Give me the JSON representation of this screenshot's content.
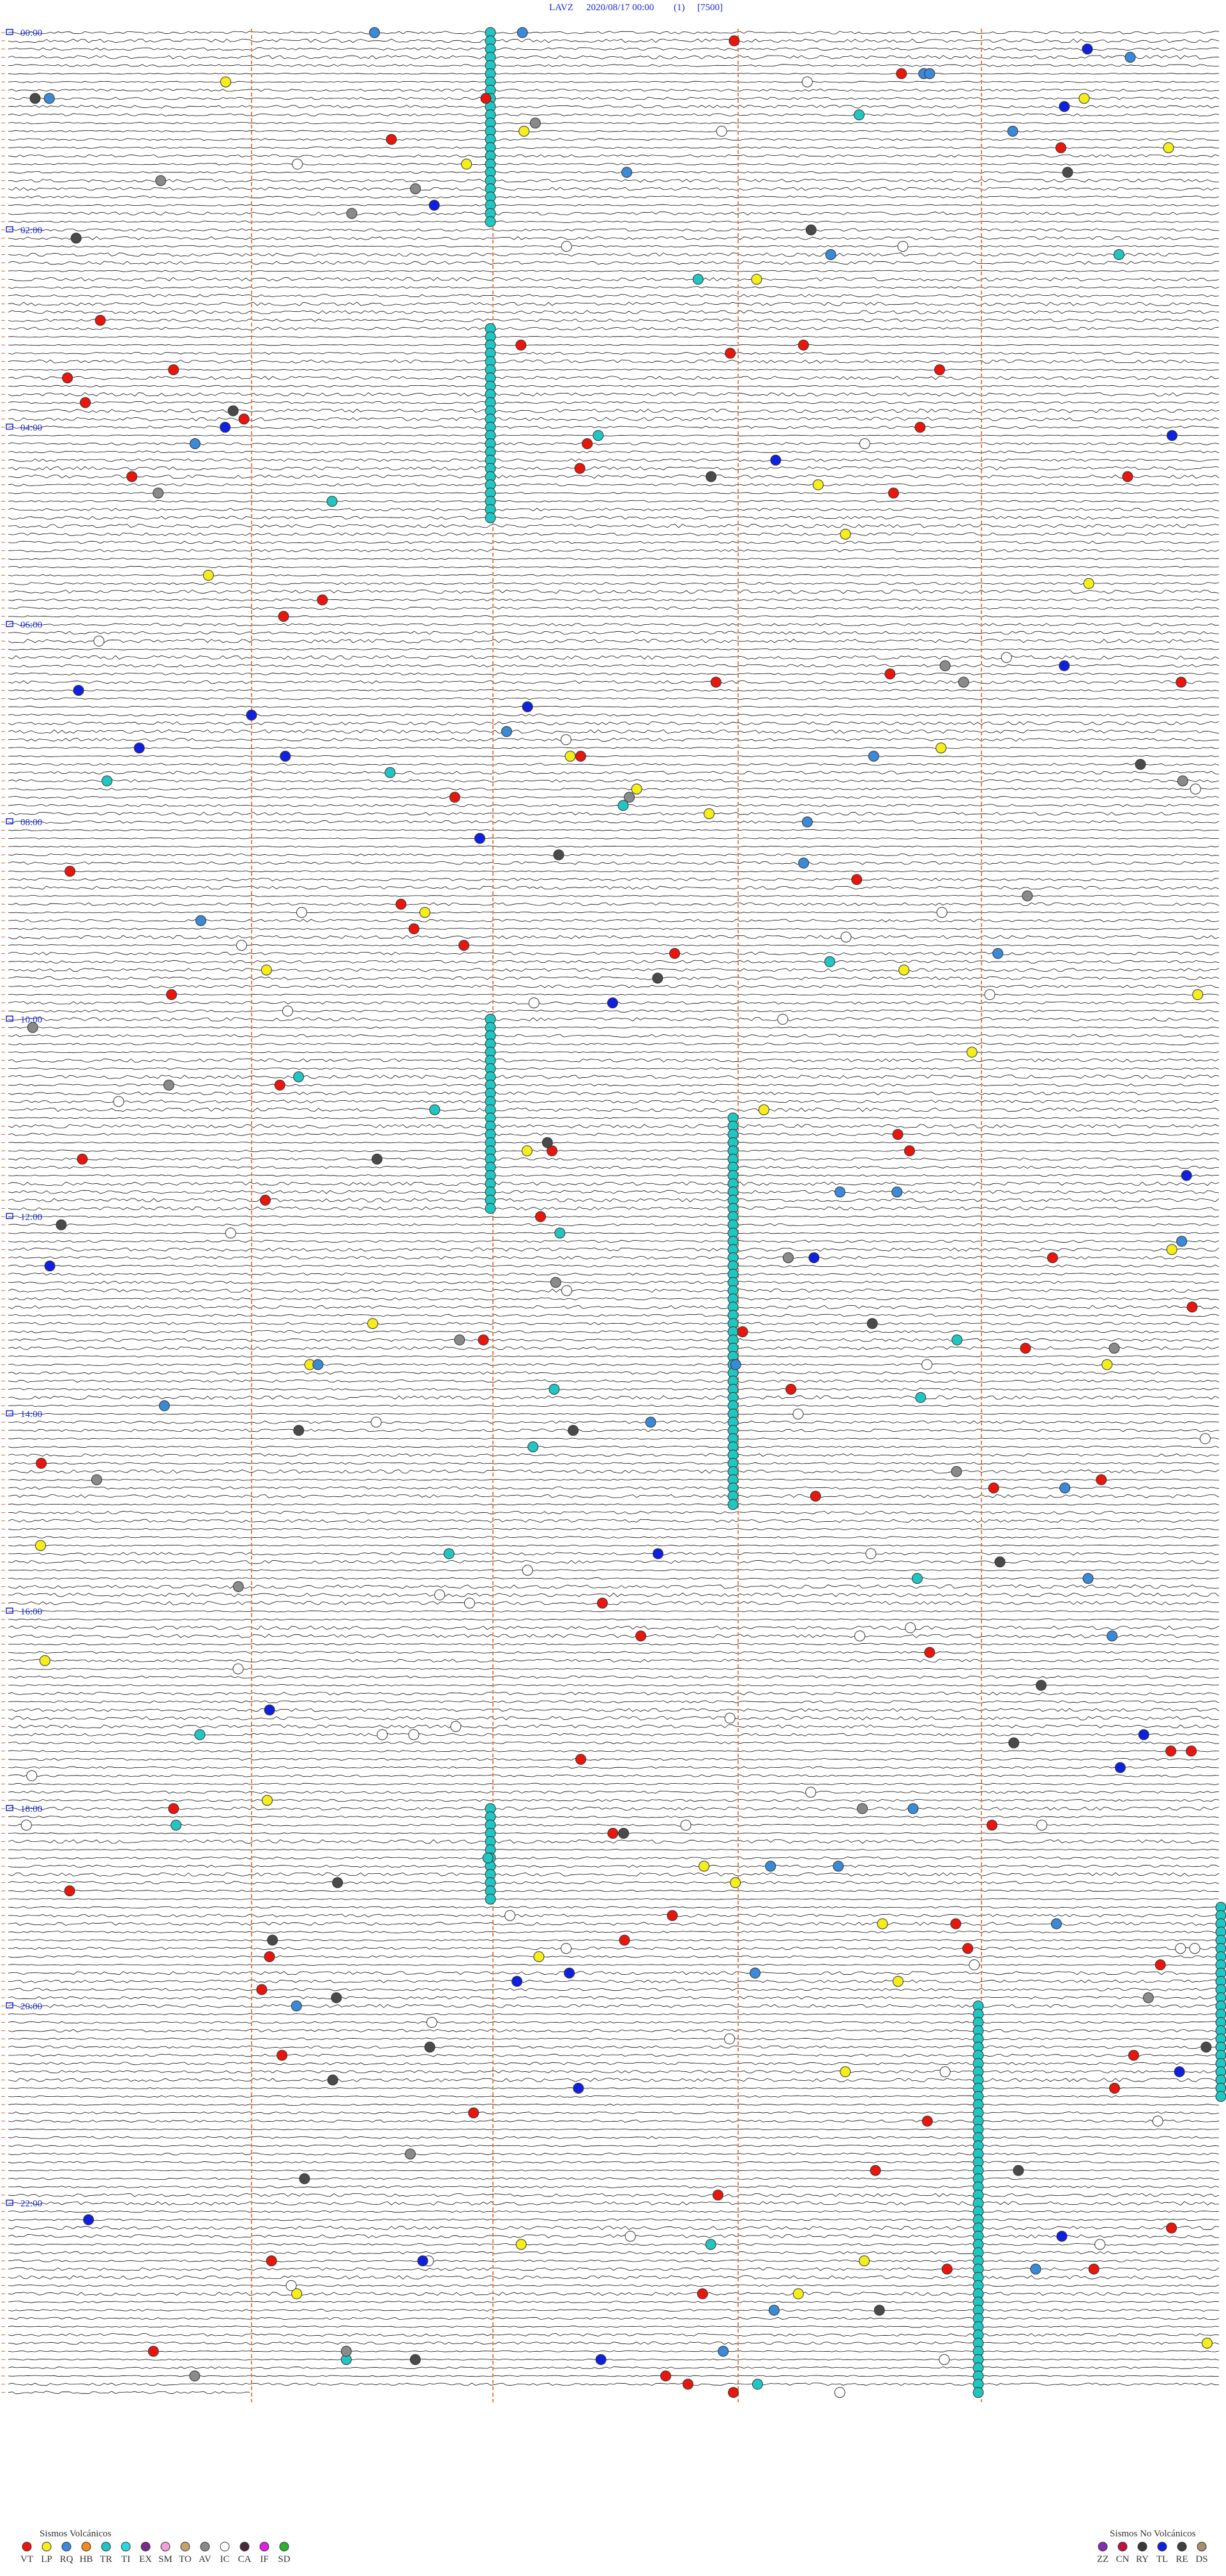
{
  "header": {
    "station": "LAVZ",
    "datetime": "2020/08/17 00:00",
    "channel": "(1)",
    "scale": "[7500]"
  },
  "hour_labels": [
    "00:00",
    "02:00",
    "04:00",
    "06:00",
    "08:00",
    "10:00",
    "12:00",
    "14:00",
    "16:00",
    "18:00",
    "20:00",
    "22:00"
  ],
  "legend": {
    "volcanic": {
      "title": "Sismos Volcánicos",
      "codes": [
        {
          "code": "VT",
          "color": "#e8160c"
        },
        {
          "code": "LP",
          "color": "#f5ee1a"
        },
        {
          "code": "RQ",
          "color": "#3a8ad8"
        },
        {
          "code": "HB",
          "color": "#f08a1a"
        },
        {
          "code": "TR",
          "color": "#21c6c3"
        },
        {
          "code": "TI",
          "color": "#2ad6e6"
        },
        {
          "code": "EX",
          "color": "#7a2a8a"
        },
        {
          "code": "SM",
          "color": "#f0a0d8"
        },
        {
          "code": "TO",
          "color": "#c8a070"
        },
        {
          "code": "AV",
          "color": "#8a8a8a"
        },
        {
          "code": "IC",
          "color": "#ffffff"
        },
        {
          "code": "CA",
          "color": "#4a2a3a"
        },
        {
          "code": "IF",
          "color": "#e020e0"
        },
        {
          "code": "SD",
          "color": "#30b030"
        }
      ]
    },
    "non_volcanic": {
      "title": "Sismos No Volcánicos",
      "codes": [
        {
          "code": "ZZ",
          "color": "#8030b0"
        },
        {
          "code": "CN",
          "color": "#c01040"
        },
        {
          "code": "RY",
          "color": "#3a3a3a"
        },
        {
          "code": "TL",
          "color": "#1020e0"
        },
        {
          "code": "RE",
          "color": "#404040"
        },
        {
          "code": "DS",
          "color": "#a09070"
        }
      ]
    }
  }
}
